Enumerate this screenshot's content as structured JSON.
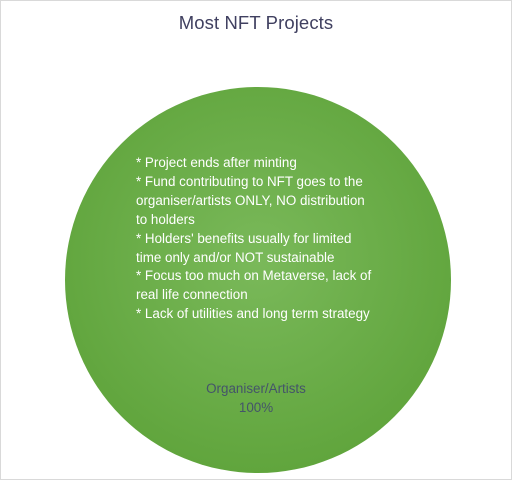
{
  "chart_data": {
    "type": "pie",
    "title": "Most NFT Projects",
    "slices": [
      {
        "label": "Organiser/Artists",
        "value": 100,
        "value_label": "100%",
        "color": "#70ad47",
        "gradient_light": "#7ab95a",
        "gradient_dark": "#5ea33a"
      }
    ],
    "legend": "none",
    "annotation": [
      "* Project ends after minting",
      "* Fund contributing to NFT goes to the",
      "organiser/artists ONLY, NO distribution",
      "to holders",
      "* Holders' benefits usually for limited",
      "time only and/or NOT sustainable",
      "* Focus too much on Metaverse, lack of",
      "real life connection",
      "* Lack of utilities and long term strategy"
    ]
  },
  "colors": {
    "title": "#404060",
    "slice_label": "#44546a",
    "annotation_text": "#ffffff",
    "border": "#d9d9d9"
  }
}
